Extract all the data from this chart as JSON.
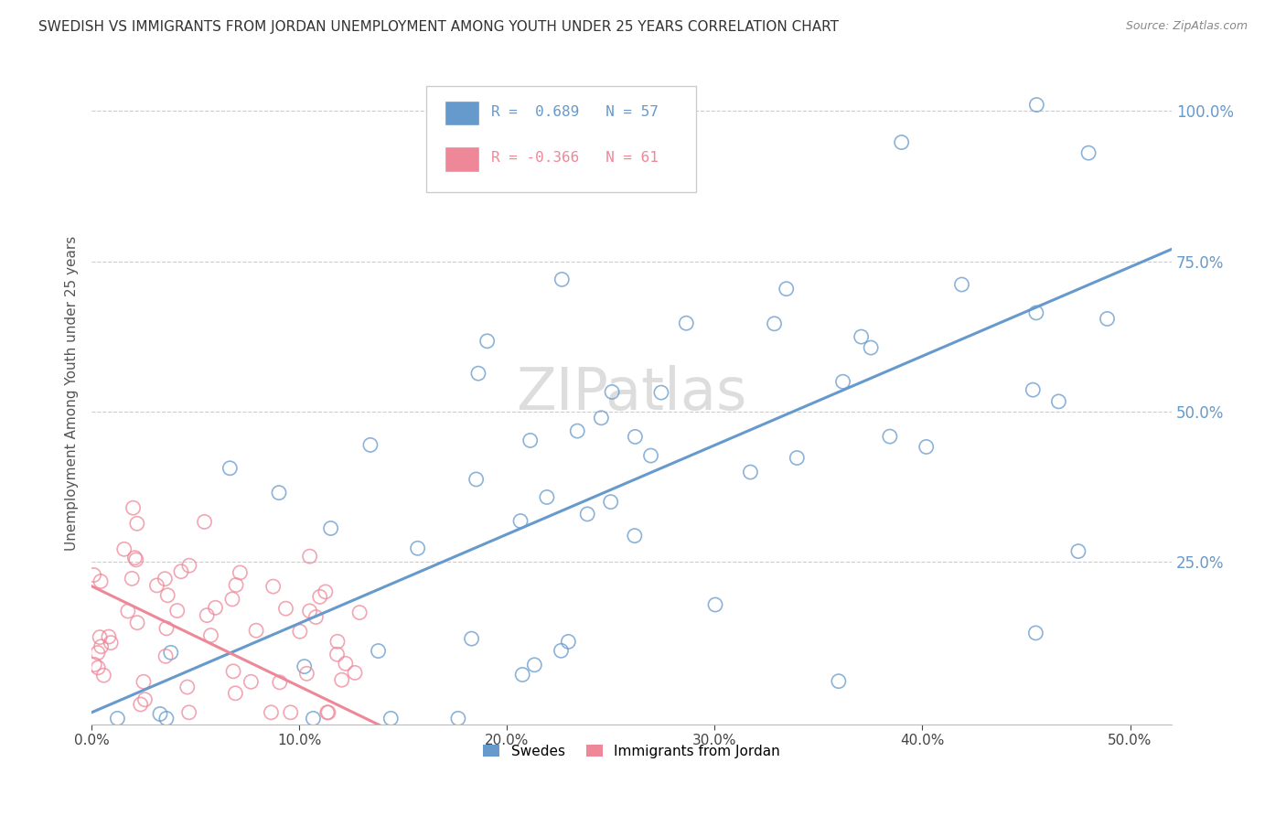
{
  "title": "SWEDISH VS IMMIGRANTS FROM JORDAN UNEMPLOYMENT AMONG YOUTH UNDER 25 YEARS CORRELATION CHART",
  "source": "Source: ZipAtlas.com",
  "ylabel": "Unemployment Among Youth under 25 years",
  "xlim": [
    0.0,
    0.52
  ],
  "ylim": [
    -0.02,
    1.08
  ],
  "xtick_labels": [
    "0.0%",
    "10.0%",
    "20.0%",
    "30.0%",
    "40.0%",
    "50.0%"
  ],
  "xtick_vals": [
    0.0,
    0.1,
    0.2,
    0.3,
    0.4,
    0.5
  ],
  "ytick_labels": [
    "25.0%",
    "50.0%",
    "75.0%",
    "100.0%"
  ],
  "ytick_vals": [
    0.25,
    0.5,
    0.75,
    1.0
  ],
  "legend_label1": "Swedes",
  "legend_label2": "Immigrants from Jordan",
  "r1": 0.689,
  "n1": 57,
  "r2": -0.366,
  "n2": 61,
  "blue_color": "#6699cc",
  "pink_color": "#ee8899",
  "watermark": "ZIPatlas",
  "blue_line_x0": 0.0,
  "blue_line_y0": 0.0,
  "blue_line_x1": 0.52,
  "blue_line_y1": 0.77,
  "pink_line_x0": 0.0,
  "pink_line_y0": 0.21,
  "pink_line_x1": 0.15,
  "pink_line_y1": -0.04
}
